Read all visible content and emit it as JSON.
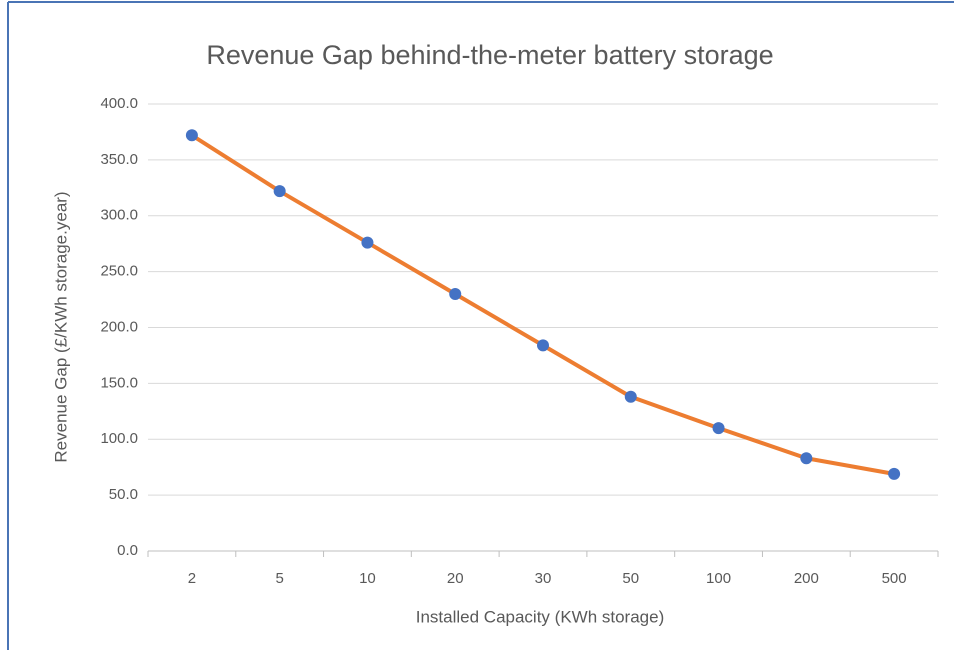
{
  "chart_data": {
    "type": "line",
    "title": "Revenue Gap behind-the-meter battery storage",
    "x_label": "Installed Capacity (KWh storage)",
    "y_label": "Revenue Gap (£/KWh storage.year)",
    "categories": [
      "2",
      "5",
      "10",
      "20",
      "30",
      "50",
      "100",
      "200",
      "500"
    ],
    "series": [
      {
        "name": "Revenue Gap",
        "color": "#ed7d31",
        "marker_color": "#4472c4",
        "values": [
          372,
          322,
          276,
          230,
          184,
          138,
          110,
          83,
          69
        ]
      }
    ],
    "ylim": [
      0,
      400
    ],
    "yticks": [
      {
        "value": 0,
        "label": "0.0"
      },
      {
        "value": 50,
        "label": "50.0"
      },
      {
        "value": 100,
        "label": "100.0"
      },
      {
        "value": 150,
        "label": "150.0"
      },
      {
        "value": 200,
        "label": "200.0"
      },
      {
        "value": 250,
        "label": "250.0"
      },
      {
        "value": 300,
        "label": "300.0"
      },
      {
        "value": 350,
        "label": "350.0"
      },
      {
        "value": 400,
        "label": "400.0"
      }
    ],
    "grid": true
  }
}
